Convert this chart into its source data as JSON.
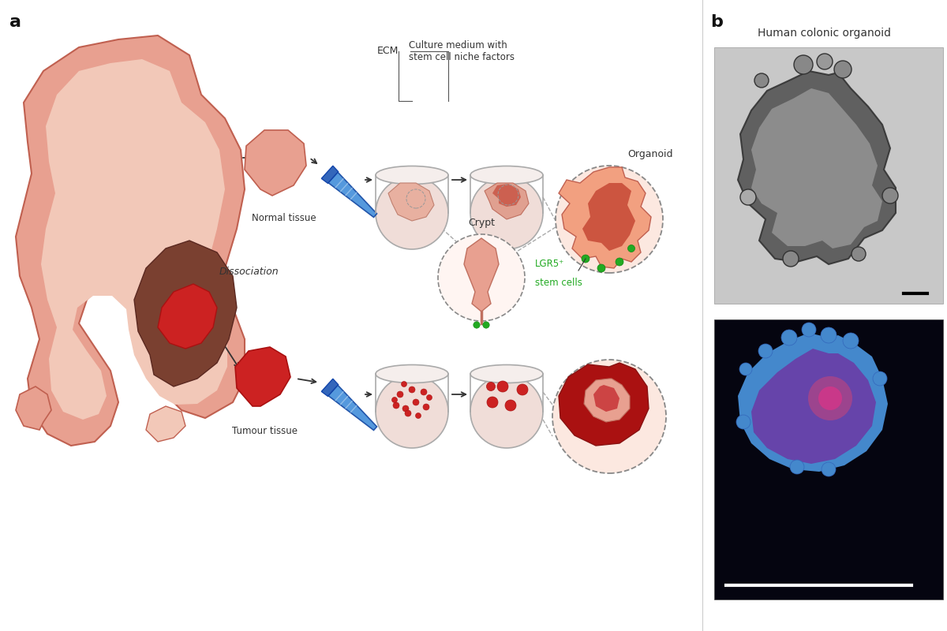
{
  "bg_color": "#ffffff",
  "panel_a_label": "a",
  "panel_b_label": "b",
  "panel_b_title": "Human colonic organoid",
  "label_normal_tissue": "Normal tissue",
  "label_tumour_tissue": "Tumour tissue",
  "label_dissociation": "Dissociation",
  "label_ecm": "ECM",
  "label_culture_medium": "Culture medium with\nstem cell niche factors",
  "label_crypt": "Crypt",
  "label_organoid": "Organoid",
  "label_lgr5_sup": "LGR5⁺",
  "label_lgr5_stem": "stem cells",
  "colon_outer_color": "#e8a090",
  "colon_outline": "#c06050",
  "colon_inner_color": "#f2c8b8",
  "tumour_brown_color": "#7a4030",
  "tumour_red_color": "#cc2222",
  "normal_tissue_color": "#e8a090",
  "tube_body_color": "#5599dd",
  "tube_cap_color": "#3366bb",
  "tube_stripe_color": "#aaccee",
  "ecm_top_color": "#f5eeec",
  "ecm_body_color": "#f0ddd8",
  "ecm_outline": "#aaaaaa",
  "crypt_color": "#e8a090",
  "crypt_stem_color": "#c07060",
  "organoid_light": "#f2a080",
  "organoid_dark": "#cc5540",
  "organoid_bg_color": "#fce8e0",
  "tumour_org_color": "#aa1111",
  "tumour_org_light": "#e8a090",
  "lgr5_color": "#22aa22",
  "arrow_color": "#333333",
  "dashed_color": "#888888",
  "text_color": "#333333",
  "scale_bar_color_black": "#000000",
  "scale_bar_color_white": "#ffffff",
  "upper_photo_bg": "#c8c8c8",
  "upper_photo_dark": "#555555",
  "upper_photo_light": "#dddddd",
  "lower_photo_bg": "#050510",
  "fluor_blue1": "#4488cc",
  "fluor_blue2": "#3366bb",
  "fluor_purple": "#6644aa",
  "fluor_pink": "#dd3388"
}
